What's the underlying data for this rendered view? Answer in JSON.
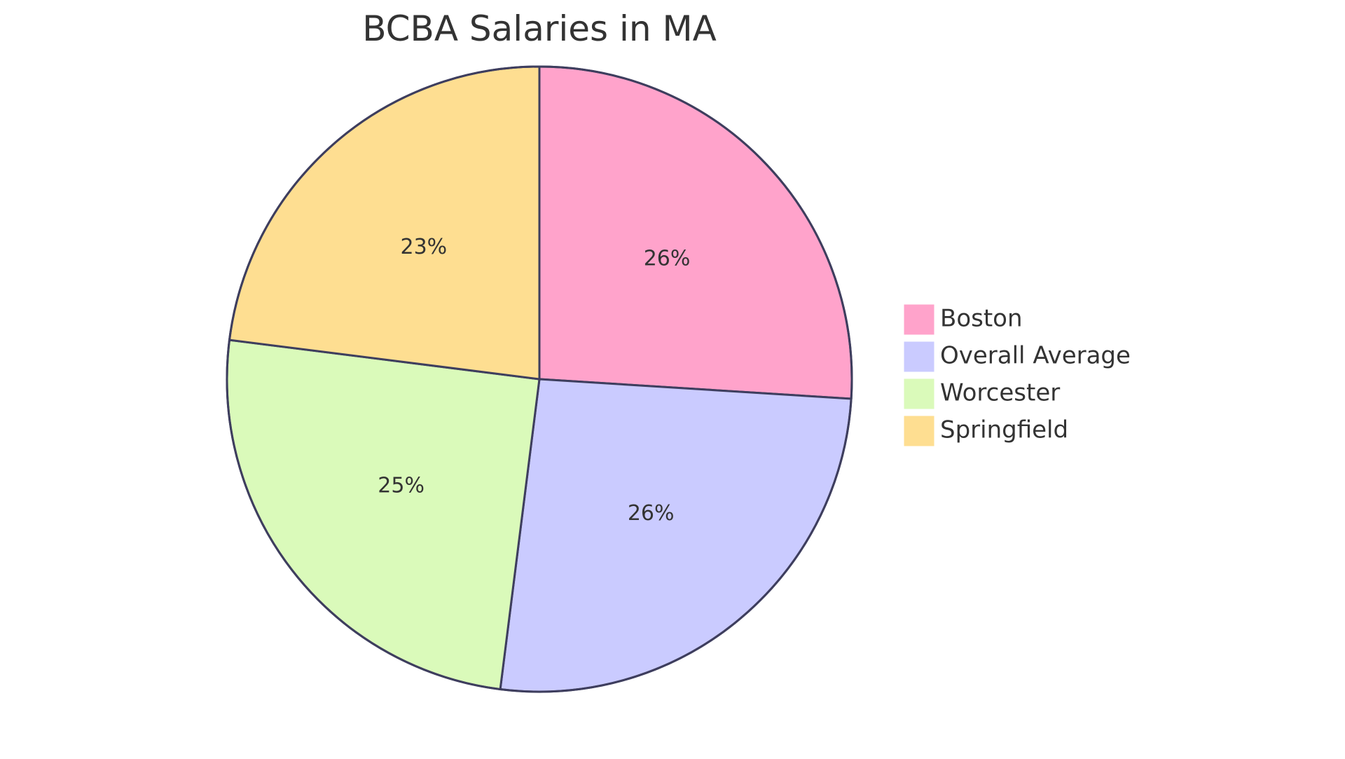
{
  "chart_data": {
    "type": "pie",
    "title": "BCBA Salaries in MA",
    "categories": [
      "Boston",
      "Overall Average",
      "Worcester",
      "Springfield"
    ],
    "values": [
      26,
      26,
      25,
      23
    ],
    "value_labels": [
      "26%",
      "26%",
      "25%",
      "23%"
    ],
    "colors": [
      "#FFA3CB",
      "#CACBFF",
      "#DAFABA",
      "#FEDE91"
    ],
    "outline_color": "#3E3E5E",
    "legend_placement": "right",
    "start_direction": "top",
    "rotation": "clockwise"
  }
}
